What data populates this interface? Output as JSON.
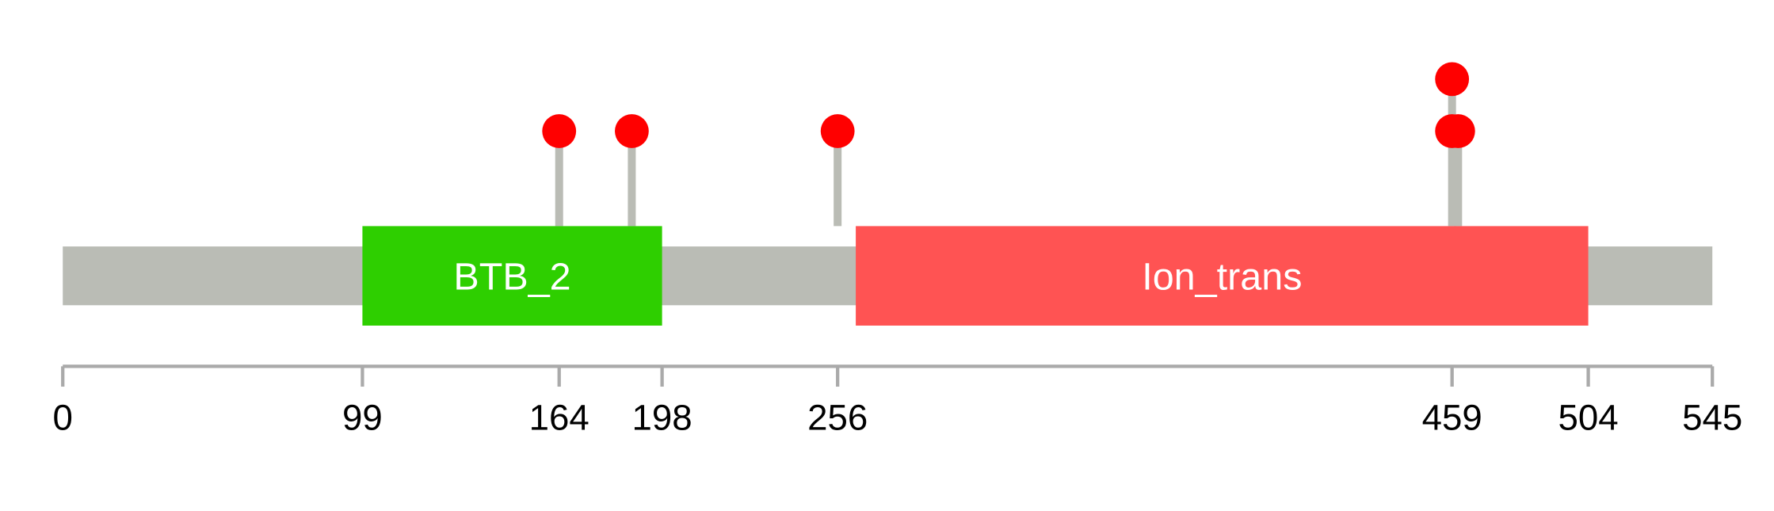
{
  "chart_data": {
    "type": "lollipop",
    "protein_length": 545,
    "backbone_color": "#BABCB5",
    "domains": [
      {
        "name": "BTB_2",
        "start": 99,
        "end": 198,
        "color": "#2ECF00"
      },
      {
        "name": "Ion_trans",
        "start": 262,
        "end": 504,
        "color": "#FF5353"
      }
    ],
    "mutations": [
      {
        "position": 164,
        "count": 1
      },
      {
        "position": 188,
        "count": 1
      },
      {
        "position": 256,
        "count": 1
      },
      {
        "position": 459,
        "count": 2
      },
      {
        "position": 461,
        "count": 1
      }
    ],
    "mutation_color": "#FF0000",
    "stem_color": "#BABCB5",
    "axis_ticks": [
      0,
      99,
      164,
      198,
      256,
      459,
      504,
      545
    ]
  }
}
